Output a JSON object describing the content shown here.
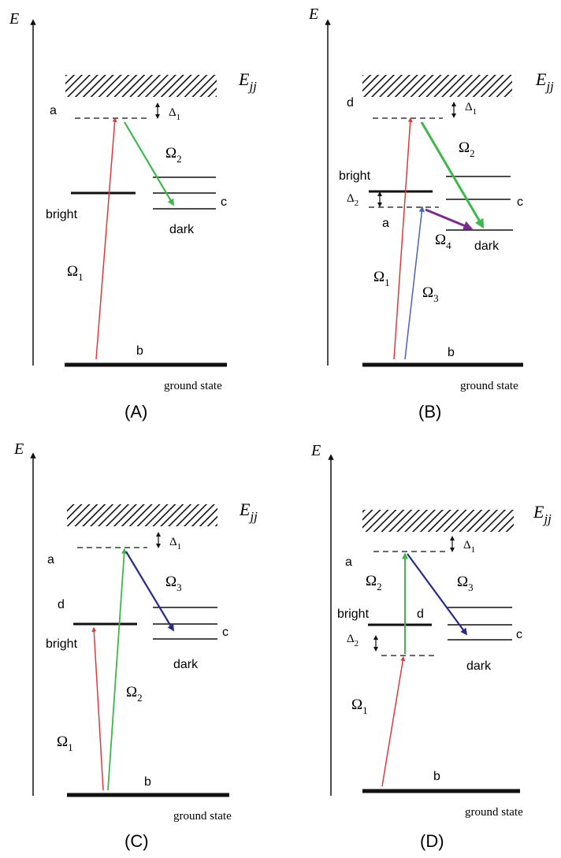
{
  "colors": {
    "red": "#e0393a",
    "green": "#3cb84a",
    "navy": "#262a8c",
    "blue": "#4a63b5",
    "purple": "#7d2a8f",
    "black": "#111111"
  },
  "panels": [
    {
      "caption": "(A)",
      "axis_label": "E",
      "band_label": "E",
      "band_sub": "jj",
      "level_labels": {
        "top": "a",
        "right": "c",
        "ground": "b"
      },
      "detuning_1": {
        "symbol": "Δ",
        "sub": "1"
      },
      "omegas": [
        {
          "symbol": "Ω",
          "sub": "1"
        },
        {
          "symbol": "Ω",
          "sub": "2"
        }
      ],
      "state_labels": {
        "bright": "bright",
        "dark": "dark",
        "ground": "ground state"
      }
    },
    {
      "caption": "(B)",
      "axis_label": "E",
      "band_label": "E",
      "band_sub": "jj",
      "level_labels": {
        "top": "d",
        "mid": "a",
        "right": "c",
        "ground": "b"
      },
      "detuning_1": {
        "symbol": "Δ",
        "sub": "1"
      },
      "detuning_2": {
        "symbol": "Δ",
        "sub": "2"
      },
      "omegas": [
        {
          "symbol": "Ω",
          "sub": "1"
        },
        {
          "symbol": "Ω",
          "sub": "2"
        },
        {
          "symbol": "Ω",
          "sub": "3"
        },
        {
          "symbol": "Ω",
          "sub": "4"
        }
      ],
      "state_labels": {
        "bright": "bright",
        "dark": "dark",
        "ground": "ground state"
      }
    },
    {
      "caption": "(C)",
      "axis_label": "E",
      "band_label": "E",
      "band_sub": "jj",
      "level_labels": {
        "top": "a",
        "mid": "d",
        "right": "c",
        "ground": "b"
      },
      "detuning_1": {
        "symbol": "Δ",
        "sub": "1"
      },
      "omegas": [
        {
          "symbol": "Ω",
          "sub": "1"
        },
        {
          "symbol": "Ω",
          "sub": "2"
        },
        {
          "symbol": "Ω",
          "sub": "3"
        }
      ],
      "state_labels": {
        "bright": "bright",
        "dark": "dark",
        "ground": "ground state"
      }
    },
    {
      "caption": "(D)",
      "axis_label": "E",
      "band_label": "E",
      "band_sub": "jj",
      "level_labels": {
        "top": "a",
        "mid": "d",
        "right": "c",
        "ground": "b"
      },
      "detuning_1": {
        "symbol": "Δ",
        "sub": "1"
      },
      "detuning_2": {
        "symbol": "Δ",
        "sub": "2"
      },
      "omegas": [
        {
          "symbol": "Ω",
          "sub": "1"
        },
        {
          "symbol": "Ω",
          "sub": "2"
        },
        {
          "symbol": "Ω",
          "sub": "3"
        }
      ],
      "state_labels": {
        "bright": "bright",
        "dark": "dark",
        "ground": "ground state"
      }
    }
  ]
}
